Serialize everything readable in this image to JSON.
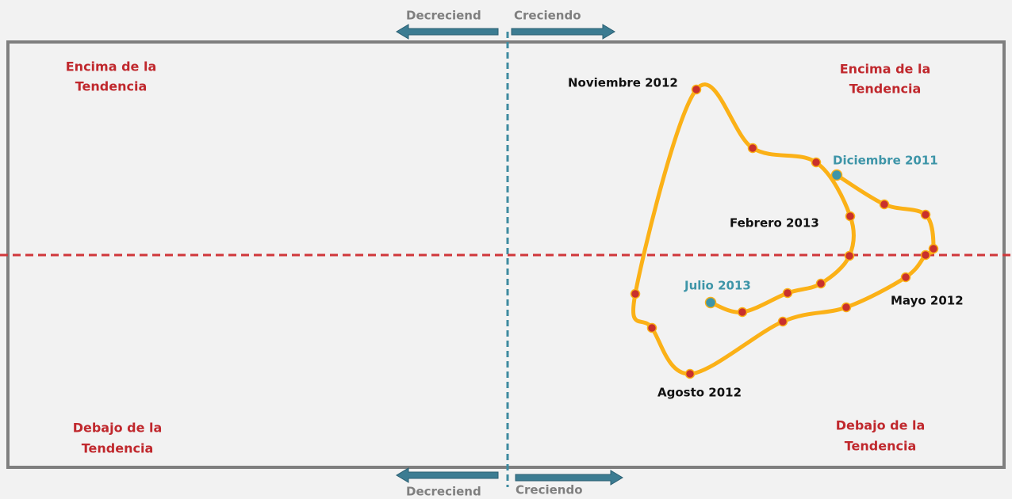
{
  "arrows": {
    "top": {
      "left": "Decreciend",
      "right": "Creciendo"
    },
    "bottom": {
      "left": "Decreciend",
      "right": "Creciendo"
    }
  },
  "quadrants": {
    "top_left": [
      "Encima de la",
      "Tendencia"
    ],
    "top_right": [
      "Encima de la",
      "Tendencia"
    ],
    "bottom_left": [
      "Debajo de la",
      "Tendencia"
    ],
    "bottom_right": [
      "Debajo de la",
      "Tendencia"
    ]
  },
  "point_labels": [
    "Diciembre 2011",
    "Mayo 2012",
    "Agosto 2012",
    "Noviembre 2012",
    "Febrero 2013",
    "Julio 2013"
  ]
}
